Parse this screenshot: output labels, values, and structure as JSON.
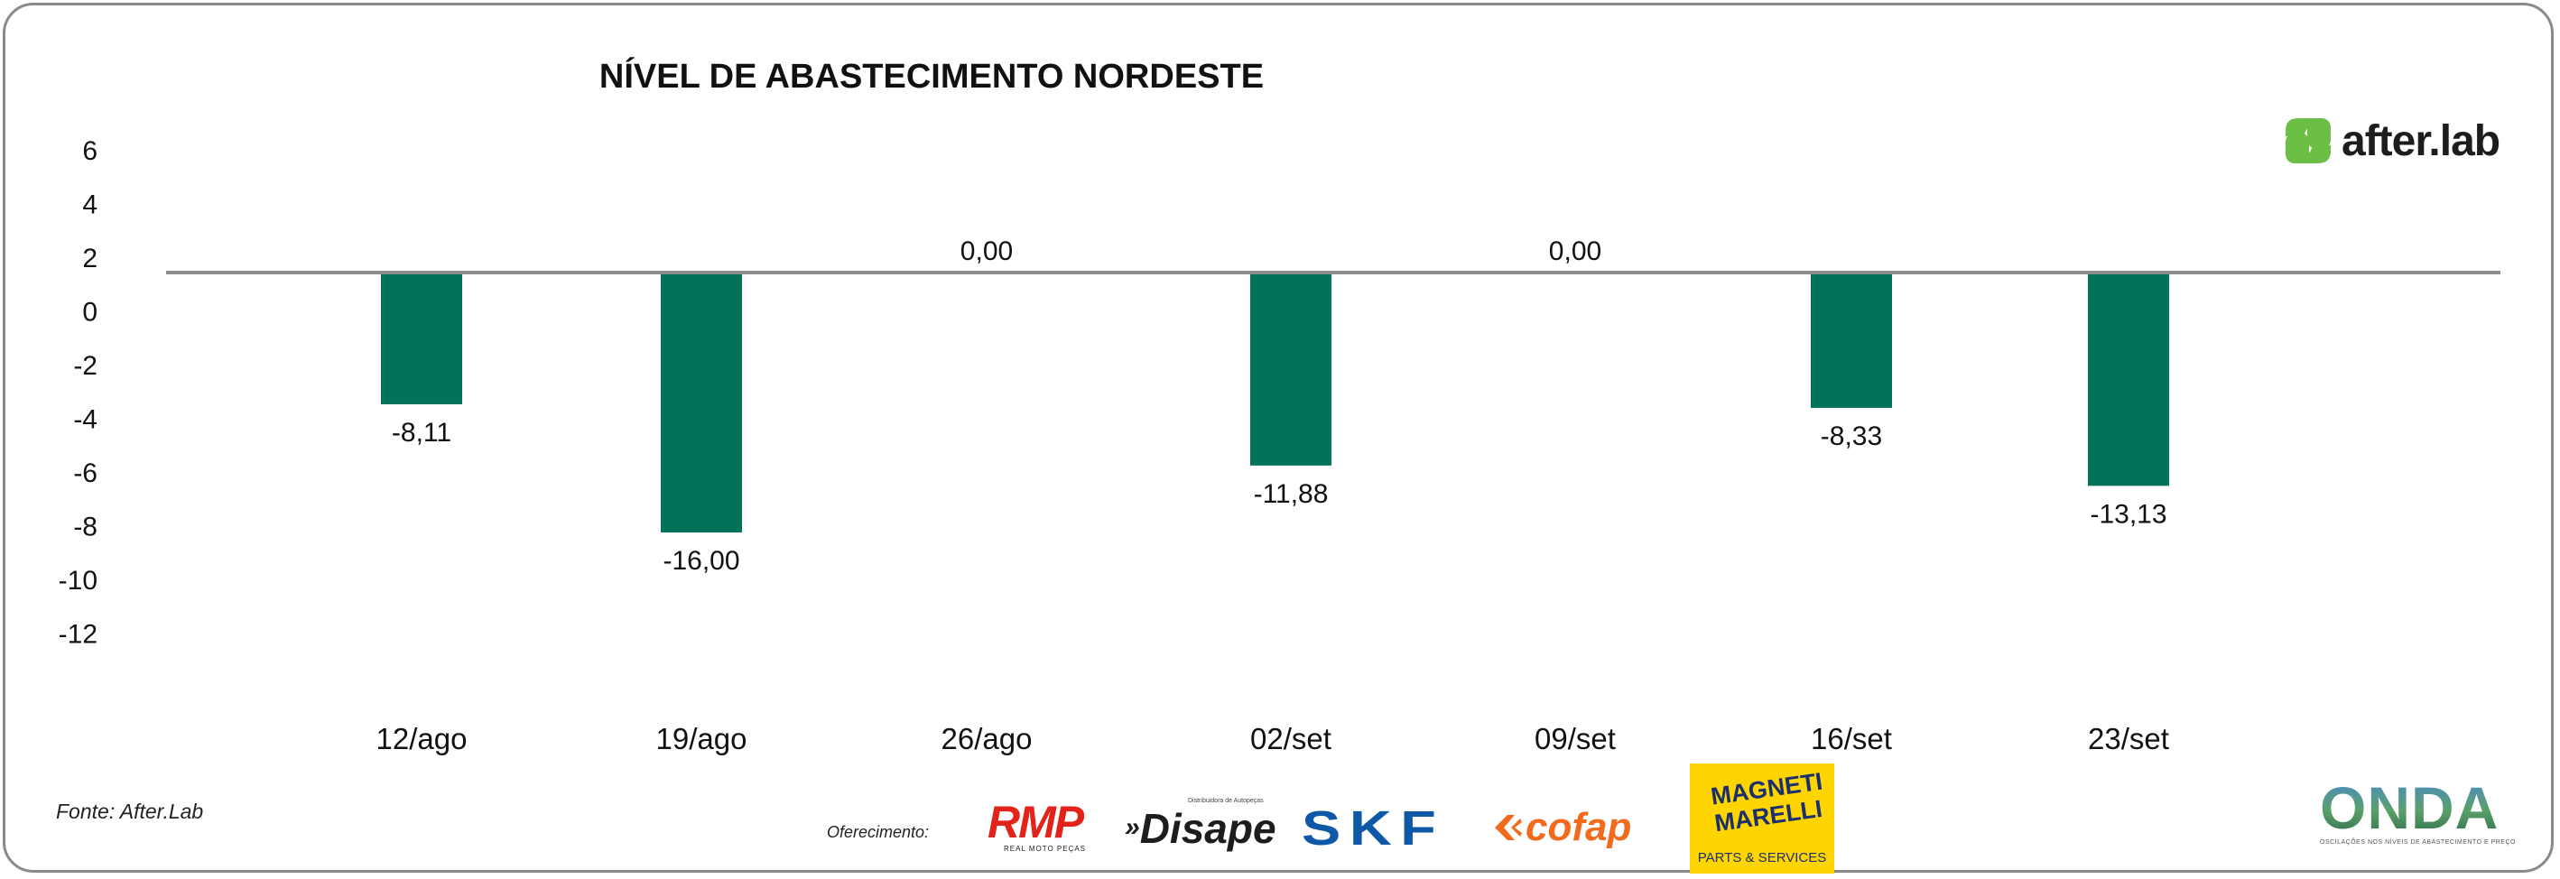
{
  "chart_data": {
    "type": "bar",
    "title": "NÍVEL DE ABASTECIMENTO NORDESTE",
    "categories": [
      "12/ago",
      "19/ago",
      "26/ago",
      "02/set",
      "09/set",
      "16/set",
      "23/set"
    ],
    "values": [
      -8.11,
      -16.0,
      0.0,
      -11.88,
      0.0,
      -8.33,
      -13.13
    ],
    "value_labels": [
      "-8,11",
      "-16,00",
      "0,00",
      "-11,88",
      "0,00",
      "-8,33",
      "-13,13"
    ],
    "y_ticks": [
      "6",
      "4",
      "2",
      "0",
      "-2",
      "-4",
      "-6",
      "-8",
      "-10",
      "-12"
    ],
    "xlabel": "",
    "ylabel": "",
    "grid": false,
    "bar_color": "#00735a"
  },
  "footer": {
    "source": "Fonte: After.Lab",
    "offer_label": "Oferecimento:"
  },
  "logos": {
    "brand": "after.lab",
    "onda": "ONDA",
    "onda_tagline": "OSCILAÇÕES NOS NÍVEIS DE ABASTECIMENTO E PREÇO",
    "sponsors": {
      "rmp": "RMP",
      "rmp_sub": "REAL MOTO PEÇAS",
      "disape": "Disape",
      "disape_sub": "Distribuidora de Autopeças",
      "skf": "SKF",
      "cofap": "cofap",
      "magneti": "MAGNETI MARELLI",
      "magneti_sub": "PARTS & SERVICES"
    }
  },
  "colors": {
    "accent_green": "#6bbf45",
    "bar": "#00735a"
  }
}
